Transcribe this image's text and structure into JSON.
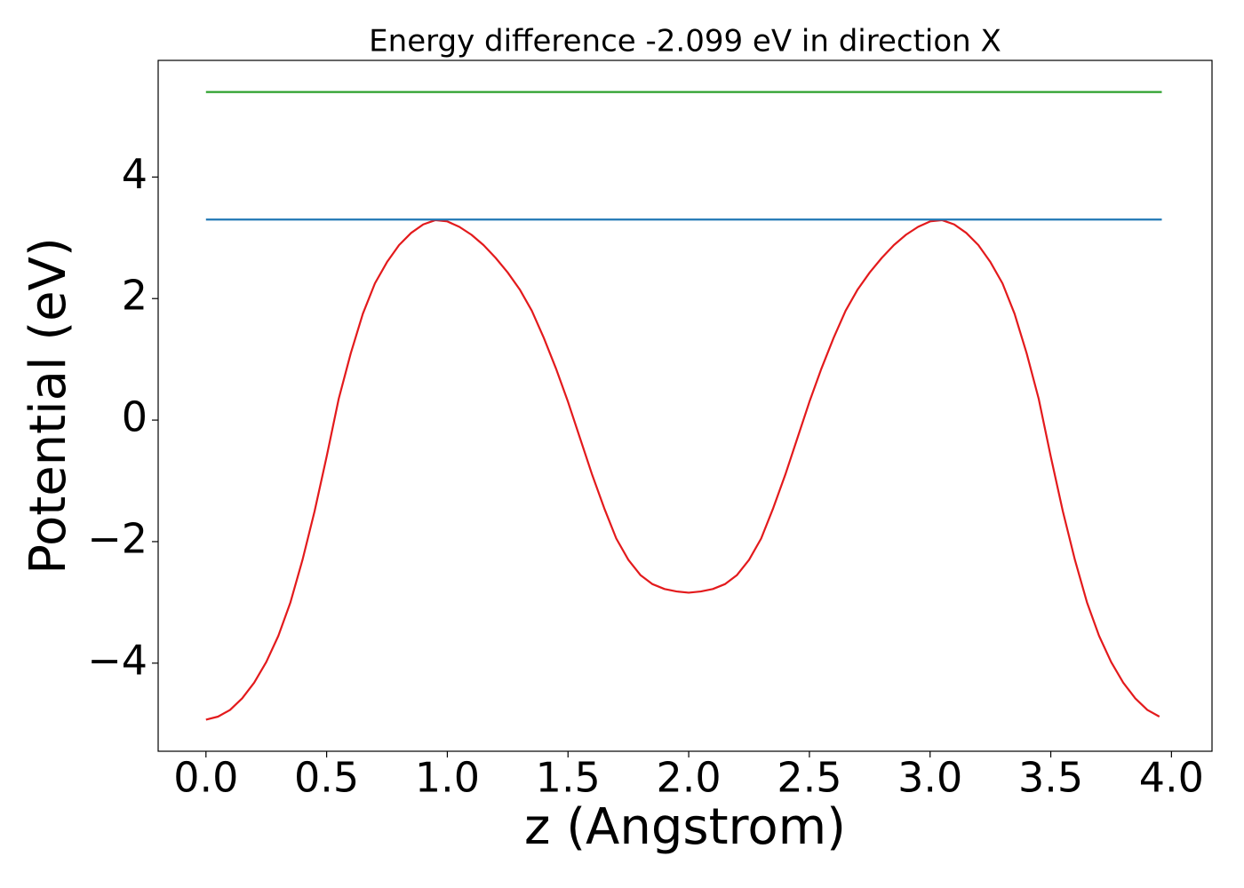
{
  "chart_data": {
    "type": "line",
    "title": "Energy difference -2.099 eV in direction X",
    "xlabel": "z (Angstrom)",
    "ylabel": "Potential (eV)",
    "xlim": [
      -0.198,
      4.168
    ],
    "ylim": [
      -5.45,
      5.92
    ],
    "xticks": [
      {
        "value": 0,
        "label": "0.0"
      },
      0.5,
      {
        "value": 1,
        "label": "1.0"
      },
      1.5,
      {
        "value": 2,
        "label": "2.0"
      },
      2.5,
      {
        "value": 3,
        "label": "3.0"
      },
      3.5,
      {
        "value": 4,
        "label": "4.0"
      }
    ],
    "yticks": [
      {
        "value": -4,
        "label": "−4"
      },
      {
        "value": -2,
        "label": "−2"
      },
      0,
      2,
      4
    ],
    "grid": false,
    "series": [
      {
        "color": "#e31a1c",
        "x": [
          0,
          0.05,
          0.1,
          0.15,
          0.2,
          0.25,
          0.3,
          0.35,
          0.4,
          0.45,
          0.5,
          0.55,
          0.6,
          0.65,
          0.7,
          0.75,
          0.8,
          0.85,
          0.9,
          0.95,
          1.0,
          1.05,
          1.1,
          1.15,
          1.2,
          1.25,
          1.3,
          1.35,
          1.4,
          1.45,
          1.5,
          1.55,
          1.6,
          1.65,
          1.7,
          1.75,
          1.8,
          1.85,
          1.9,
          1.95,
          2.0,
          2.05,
          2.1,
          2.15,
          2.2,
          2.25,
          2.3,
          2.35,
          2.4,
          2.45,
          2.5,
          2.55,
          2.6,
          2.65,
          2.7,
          2.75,
          2.8,
          2.85,
          2.9,
          2.95,
          3.0,
          3.05,
          3.1,
          3.15,
          3.2,
          3.25,
          3.3,
          3.35,
          3.4,
          3.45,
          3.5,
          3.55,
          3.6,
          3.65,
          3.7,
          3.75,
          3.8,
          3.85,
          3.9,
          3.95
        ],
        "values": [
          -4.93,
          -4.88,
          -4.77,
          -4.58,
          -4.32,
          -3.98,
          -3.55,
          -3.0,
          -2.3,
          -1.5,
          -0.6,
          0.35,
          1.1,
          1.75,
          2.25,
          2.6,
          2.88,
          3.08,
          3.22,
          3.29,
          3.27,
          3.18,
          3.05,
          2.88,
          2.67,
          2.43,
          2.15,
          1.8,
          1.35,
          0.85,
          0.3,
          -0.3,
          -0.9,
          -1.45,
          -1.95,
          -2.3,
          -2.55,
          -2.7,
          -2.78,
          -2.82,
          -2.84,
          -2.82,
          -2.78,
          -2.7,
          -2.55,
          -2.3,
          -1.95,
          -1.45,
          -0.9,
          -0.3,
          0.3,
          0.85,
          1.35,
          1.8,
          2.15,
          2.43,
          2.67,
          2.88,
          3.05,
          3.18,
          3.27,
          3.29,
          3.22,
          3.08,
          2.88,
          2.6,
          2.25,
          1.75,
          1.1,
          0.35,
          -0.6,
          -1.5,
          -2.3,
          -3.0,
          -3.55,
          -3.98,
          -4.32,
          -4.58,
          -4.77,
          -4.88
        ]
      },
      {
        "color": "#1f77b4",
        "x": [
          0,
          3.96
        ],
        "values": [
          3.3,
          3.3
        ]
      },
      {
        "color": "#2ca02c",
        "x": [
          0,
          3.96
        ],
        "values": [
          5.399,
          5.399
        ]
      }
    ]
  }
}
